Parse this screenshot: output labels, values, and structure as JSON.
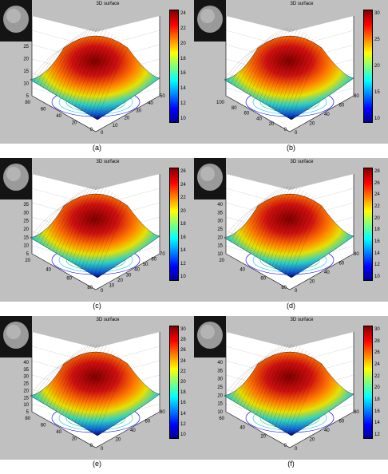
{
  "panels": [
    {
      "caption": "(a)",
      "title": "3D surface",
      "colorbar": [
        "24",
        "22",
        "20",
        "18",
        "16",
        "14",
        "12",
        "10"
      ],
      "z_ticks": [
        "25",
        "20",
        "15",
        "10",
        "5"
      ],
      "left_ticks": [
        "80",
        "60",
        "40",
        "20",
        "0"
      ],
      "right_ticks": [
        "0",
        "10",
        "20",
        "30",
        "40",
        "50"
      ]
    },
    {
      "caption": "(b)",
      "title": "3D surface",
      "colorbar": [
        "30",
        "25",
        "20",
        "15",
        "10"
      ],
      "z_ticks": [],
      "left_ticks": [
        "100",
        "80",
        "60",
        "40",
        "20",
        "0"
      ],
      "right_ticks": [
        "0",
        "20",
        "40",
        "60",
        "80"
      ]
    },
    {
      "caption": "(c)",
      "title": "3D surface",
      "colorbar": [
        "26",
        "24",
        "22",
        "20",
        "18",
        "16",
        "14",
        "12",
        "10"
      ],
      "z_ticks": [
        "35",
        "30",
        "25",
        "20",
        "15",
        "10",
        "5"
      ],
      "left_ticks": [
        "20",
        "40",
        "60",
        "80"
      ],
      "right_ticks": [
        "0",
        "10",
        "20",
        "30",
        "40",
        "50",
        "60",
        "70"
      ]
    },
    {
      "caption": "(d)",
      "title": "3D surface",
      "colorbar": [
        "28",
        "26",
        "24",
        "22",
        "20",
        "18",
        "16",
        "14",
        "12",
        "10"
      ],
      "z_ticks": [
        "40",
        "35",
        "30",
        "25",
        "20",
        "15",
        "10"
      ],
      "left_ticks": [
        "20",
        "40",
        "60",
        "80"
      ],
      "right_ticks": [
        "0",
        "20",
        "40",
        "60",
        "80"
      ]
    },
    {
      "caption": "(e)",
      "title": "3D surface",
      "colorbar": [
        "30",
        "28",
        "26",
        "24",
        "22",
        "20",
        "18",
        "16",
        "14",
        "12",
        "10"
      ],
      "z_ticks": [
        "40",
        "35",
        "30",
        "25",
        "20",
        "15",
        "10",
        "5"
      ],
      "left_ticks": [
        "80",
        "60",
        "40",
        "20",
        "0"
      ],
      "right_ticks": [
        "0",
        "20",
        "40",
        "60",
        "80"
      ]
    },
    {
      "caption": "(f)",
      "title": "3D surface",
      "colorbar": [
        "30",
        "28",
        "26",
        "24",
        "22",
        "20",
        "18",
        "16",
        "14",
        "12"
      ],
      "z_ticks": [
        "40",
        "35",
        "30",
        "25",
        "20",
        "15",
        "10"
      ],
      "left_ticks": [
        "60",
        "40",
        "20",
        "0"
      ],
      "right_ticks": [
        "0",
        "20",
        "40",
        "60",
        "80"
      ]
    }
  ]
}
